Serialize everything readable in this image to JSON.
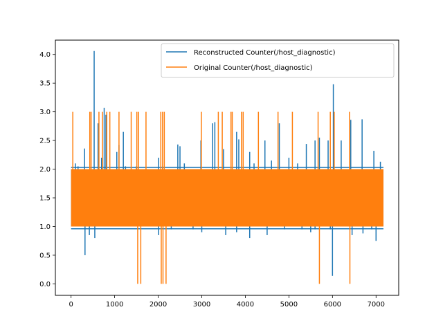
{
  "chart_data": {
    "type": "line",
    "title": "",
    "xlabel": "",
    "ylabel": "",
    "xlim": [
      -360,
      7520
    ],
    "ylim": [
      -0.2,
      4.25
    ],
    "x_range": [
      0,
      7170
    ],
    "xticks": [
      0,
      1000,
      2000,
      3000,
      4000,
      5000,
      6000,
      7000
    ],
    "yticks": [
      0.0,
      0.5,
      1.0,
      1.5,
      2.0,
      2.5,
      3.0,
      3.5,
      4.0
    ],
    "xtick_labels": [
      "0",
      "1000",
      "2000",
      "3000",
      "4000",
      "5000",
      "6000",
      "7000"
    ],
    "ytick_labels": [
      "0.0",
      "0.5",
      "1.0",
      "1.5",
      "2.0",
      "2.5",
      "3.0",
      "3.5",
      "4.0"
    ],
    "grid": false,
    "legend_position": "top-right",
    "series": [
      {
        "name": "Reconstructed Counter(/host_diagnostic)",
        "color": "#1f77b4",
        "band": [
          1.0,
          2.0
        ],
        "description_values": "dense oscillation between ~1 and ~2",
        "spikes": [
          [
            100,
            2.1
          ],
          [
            160,
            2.05
          ],
          [
            310,
            2.36
          ],
          [
            320,
            0.5
          ],
          [
            420,
            0.85
          ],
          [
            530,
            4.06
          ],
          [
            545,
            0.8
          ],
          [
            620,
            2.8
          ],
          [
            700,
            2.2
          ],
          [
            760,
            3.07
          ],
          [
            800,
            2.95
          ],
          [
            1050,
            2.3
          ],
          [
            1100,
            2.42
          ],
          [
            1200,
            2.65
          ],
          [
            1250,
            2.05
          ],
          [
            1400,
            2.0
          ],
          [
            1500,
            2.05
          ],
          [
            2010,
            2.2
          ],
          [
            2100,
            2.05
          ],
          [
            2450,
            2.43
          ],
          [
            2500,
            2.4
          ],
          [
            2600,
            2.1
          ],
          [
            2980,
            2.5
          ],
          [
            3250,
            2.8
          ],
          [
            3300,
            2.82
          ],
          [
            3500,
            2.35
          ],
          [
            3800,
            2.65
          ],
          [
            3850,
            2.52
          ],
          [
            4100,
            2.3
          ],
          [
            4200,
            2.1
          ],
          [
            4450,
            2.5
          ],
          [
            4600,
            2.15
          ],
          [
            4780,
            2.8
          ],
          [
            5000,
            2.2
          ],
          [
            5200,
            2.1
          ],
          [
            5400,
            2.44
          ],
          [
            5600,
            2.5
          ],
          [
            5700,
            2.55
          ],
          [
            5900,
            2.5
          ],
          [
            6020,
            3.48
          ],
          [
            6000,
            0.14
          ],
          [
            6200,
            2.5
          ],
          [
            6420,
            2.86
          ],
          [
            6680,
            2.87
          ],
          [
            6950,
            2.32
          ],
          [
            7000,
            0.75
          ],
          [
            7100,
            2.13
          ],
          [
            2010,
            0.85
          ],
          [
            2300,
            0.95
          ],
          [
            2800,
            0.95
          ],
          [
            3000,
            0.9
          ],
          [
            3550,
            0.85
          ],
          [
            3800,
            0.9
          ],
          [
            4100,
            0.8
          ],
          [
            4500,
            0.85
          ],
          [
            4900,
            0.95
          ],
          [
            5300,
            0.95
          ],
          [
            5500,
            0.9
          ],
          [
            5600,
            0.95
          ],
          [
            5950,
            0.95
          ],
          [
            6450,
            0.85
          ],
          [
            6700,
            0.88
          ],
          [
            6900,
            0.95
          ]
        ]
      },
      {
        "name": "Original Counter(/host_diagnostic)",
        "color": "#ff7f0e",
        "band": [
          1.0,
          2.0
        ],
        "spikes": [
          [
            40,
            3.0
          ],
          [
            430,
            3.0
          ],
          [
            460,
            3.0
          ],
          [
            640,
            3.0
          ],
          [
            720,
            3.0
          ],
          [
            820,
            3.0
          ],
          [
            890,
            3.0
          ],
          [
            1100,
            3.0
          ],
          [
            1380,
            3.0
          ],
          [
            1510,
            3.0
          ],
          [
            1550,
            3.0
          ],
          [
            1720,
            3.0
          ],
          [
            2060,
            3.0
          ],
          [
            2100,
            3.0
          ],
          [
            2140,
            3.0
          ],
          [
            2990,
            3.0
          ],
          [
            3380,
            3.0
          ],
          [
            3470,
            3.0
          ],
          [
            3670,
            3.0
          ],
          [
            3700,
            3.0
          ],
          [
            3910,
            3.0
          ],
          [
            3950,
            3.0
          ],
          [
            4300,
            3.0
          ],
          [
            4750,
            3.0
          ],
          [
            5080,
            3.0
          ],
          [
            5670,
            3.0
          ],
          [
            5950,
            3.0
          ],
          [
            6040,
            3.0
          ],
          [
            6390,
            3.0
          ],
          [
            1530,
            0.0
          ],
          [
            1600,
            0.0
          ],
          [
            2070,
            0.0
          ],
          [
            2110,
            0.0
          ],
          [
            2180,
            0.0
          ],
          [
            5700,
            0.0
          ],
          [
            6400,
            0.0
          ]
        ]
      }
    ]
  }
}
